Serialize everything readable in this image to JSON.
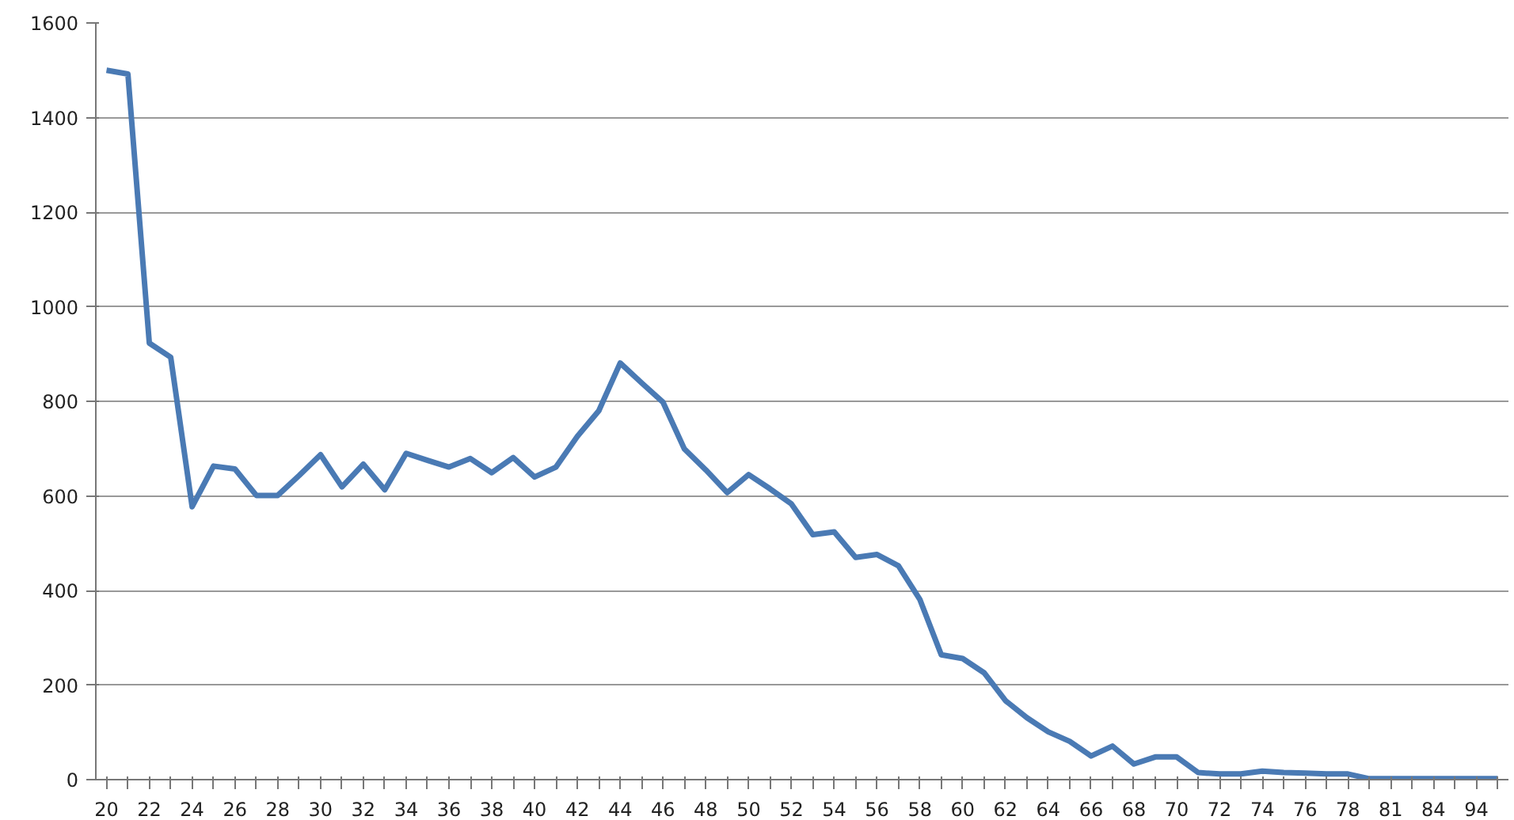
{
  "chart_data": {
    "type": "line",
    "categories": [
      "20",
      null,
      "22",
      null,
      "24",
      null,
      "26",
      null,
      "28",
      null,
      "30",
      null,
      "32",
      null,
      "34",
      null,
      "36",
      null,
      "38",
      null,
      "40",
      null,
      "42",
      null,
      "44",
      null,
      "46",
      null,
      "48",
      null,
      "50",
      null,
      "52",
      null,
      "54",
      null,
      "56",
      null,
      "58",
      null,
      "60",
      null,
      "62",
      null,
      "64",
      null,
      "66",
      null,
      "68",
      null,
      "70",
      null,
      "72",
      null,
      "74",
      null,
      "76",
      null,
      "78",
      null,
      "81",
      null,
      "84",
      null,
      "94",
      null
    ],
    "series": [
      {
        "color": "#4a7ab4",
        "values": [
          1500,
          1492,
          923,
          893,
          577,
          663,
          657,
          601,
          601,
          643,
          687,
          619,
          667,
          613,
          690,
          675,
          661,
          679,
          649,
          681,
          640,
          661,
          726,
          780,
          881,
          839,
          798,
          699,
          655,
          607,
          645,
          615,
          583,
          518,
          524,
          470,
          476,
          452,
          381,
          264,
          256,
          226,
          167,
          131,
          101,
          81,
          50,
          71,
          33,
          48,
          48,
          15,
          12,
          12,
          18,
          15,
          14,
          12,
          12,
          2,
          2,
          2,
          2,
          2,
          2,
          2
        ]
      }
    ],
    "ylim": [
      0,
      1600
    ],
    "yticks": [
      0,
      200,
      400,
      600,
      800,
      1000,
      1200,
      1400,
      1600
    ],
    "grid": "y",
    "marker": "none",
    "line_style": "solid"
  }
}
